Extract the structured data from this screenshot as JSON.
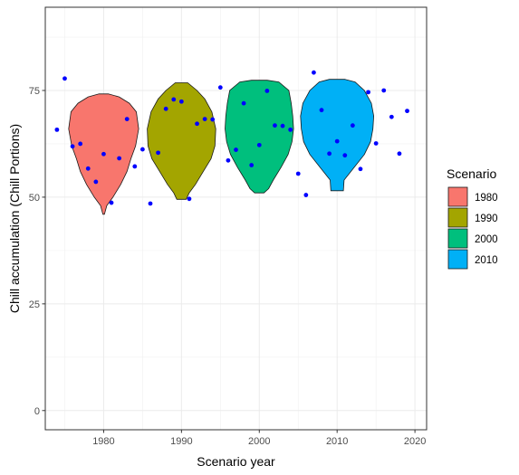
{
  "chart_data": {
    "type": "violin",
    "xlabel": "Scenario year",
    "ylabel": "Chill accumulation (Chill Portions)",
    "xlim": [
      1972.5,
      2021.5
    ],
    "ylim": [
      -4.5,
      94.5
    ],
    "x_ticks": [
      1980,
      1990,
      2000,
      2010,
      2020
    ],
    "y_ticks": [
      0,
      25,
      50,
      75
    ],
    "grid": true,
    "legend": {
      "title": "Scenario",
      "position": "right",
      "entries": [
        {
          "label": "1980",
          "color": "#F8766D"
        },
        {
          "label": "1990",
          "color": "#A3A500"
        },
        {
          "label": "2000",
          "color": "#00BF7D"
        },
        {
          "label": "2010",
          "color": "#00B0F6"
        }
      ]
    },
    "violins": [
      {
        "scenario": "1980",
        "x": 1980,
        "color": "#F8766D",
        "profile": [
          [
            46,
            0.1
          ],
          [
            48,
            0.4
          ],
          [
            50,
            1.2
          ],
          [
            53,
            2.2
          ],
          [
            56,
            3.0
          ],
          [
            59,
            3.5
          ],
          [
            62,
            4.1
          ],
          [
            66,
            4.5
          ],
          [
            70,
            4.2
          ],
          [
            72,
            3.3
          ],
          [
            73.5,
            2.0
          ],
          [
            74.2,
            0.6
          ]
        ]
      },
      {
        "scenario": "1990",
        "x": 1990,
        "color": "#A3A500",
        "profile": [
          [
            49.5,
            0.6
          ],
          [
            51,
            1.0
          ],
          [
            53,
            1.8
          ],
          [
            56,
            2.8
          ],
          [
            59,
            3.8
          ],
          [
            62,
            4.3
          ],
          [
            66,
            4.4
          ],
          [
            70,
            3.9
          ],
          [
            73,
            3.0
          ],
          [
            75,
            2.0
          ],
          [
            76.8,
            0.8
          ]
        ]
      },
      {
        "scenario": "2000",
        "x": 2000,
        "color": "#00BF7D",
        "profile": [
          [
            51,
            0.6
          ],
          [
            52,
            1.2
          ],
          [
            54,
            1.8
          ],
          [
            57,
            2.8
          ],
          [
            60,
            3.7
          ],
          [
            63,
            4.2
          ],
          [
            66,
            4.4
          ],
          [
            69,
            4.3
          ],
          [
            72,
            4.1
          ],
          [
            75,
            3.8
          ],
          [
            77,
            2.5
          ],
          [
            77.4,
            1.0
          ]
        ]
      },
      {
        "scenario": "2010",
        "x": 2010,
        "color": "#00B0F6",
        "profile": [
          [
            51.5,
            0.8
          ],
          [
            54,
            0.9
          ],
          [
            57,
            2.2
          ],
          [
            60,
            3.5
          ],
          [
            63,
            4.3
          ],
          [
            66,
            4.6
          ],
          [
            69,
            4.7
          ],
          [
            72,
            4.4
          ],
          [
            75,
            3.5
          ],
          [
            77,
            2.3
          ],
          [
            77.6,
            1.0
          ]
        ]
      }
    ],
    "points_color": "#0000FF",
    "points": [
      [
        1974,
        65.8
      ],
      [
        1975,
        77.8
      ],
      [
        1976,
        61.9
      ],
      [
        1977,
        62.5
      ],
      [
        1978,
        56.7
      ],
      [
        1979,
        53.6
      ],
      [
        1980,
        60.1
      ],
      [
        1981,
        48.7
      ],
      [
        1982,
        59.1
      ],
      [
        1983,
        68.3
      ],
      [
        1984,
        57.2
      ],
      [
        1985,
        61.2
      ],
      [
        1986,
        48.5
      ],
      [
        1987,
        60.4
      ],
      [
        1988,
        70.7
      ],
      [
        1989,
        72.9
      ],
      [
        1990,
        72.4
      ],
      [
        1991,
        49.6
      ],
      [
        1992,
        67.2
      ],
      [
        1993,
        68.3
      ],
      [
        1994,
        68.2
      ],
      [
        1995,
        75.7
      ],
      [
        1996,
        58.6
      ],
      [
        1997,
        61.1
      ],
      [
        1998,
        72.0
      ],
      [
        1999,
        57.5
      ],
      [
        2000,
        62.2
      ],
      [
        2001,
        74.9
      ],
      [
        2002,
        66.8
      ],
      [
        2003,
        66.7
      ],
      [
        2004,
        65.8
      ],
      [
        2005,
        55.5
      ],
      [
        2006,
        50.5
      ],
      [
        2007,
        79.2
      ],
      [
        2008,
        70.4
      ],
      [
        2009,
        60.2
      ],
      [
        2010,
        63.1
      ],
      [
        2011,
        59.8
      ],
      [
        2012,
        66.8
      ],
      [
        2013,
        56.6
      ],
      [
        2014,
        74.6
      ],
      [
        2015,
        62.6
      ],
      [
        2016,
        75.0
      ],
      [
        2017,
        68.8
      ],
      [
        2018,
        60.2
      ],
      [
        2019,
        70.2
      ]
    ]
  }
}
